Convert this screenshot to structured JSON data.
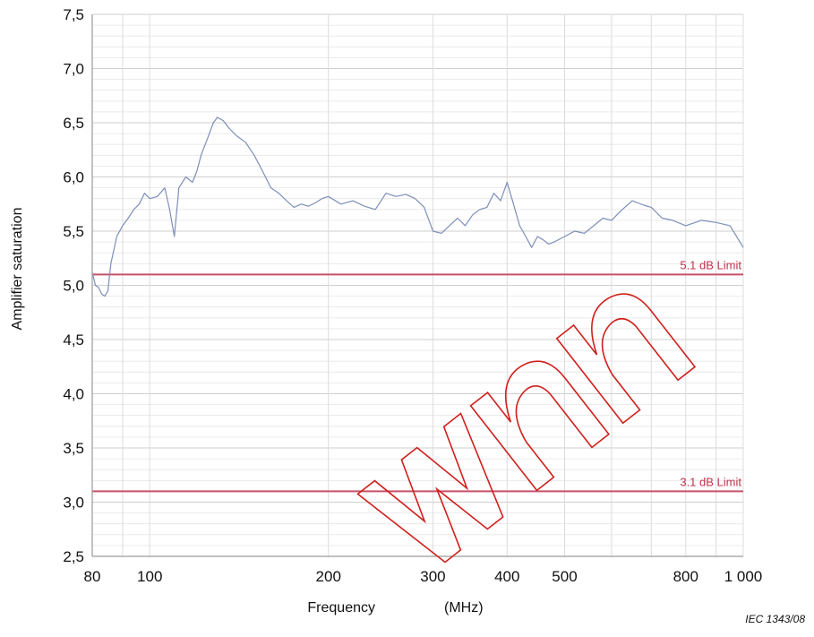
{
  "chart_data": {
    "type": "line",
    "xlabel": "Frequency",
    "xunit": "(MHz)",
    "ylabel": "Amplifier saturation",
    "x_scale": "log",
    "xlim": [
      80,
      1000
    ],
    "ylim": [
      2.5,
      7.5
    ],
    "x_ticks": [
      {
        "value": 80,
        "label": "80"
      },
      {
        "value": 100,
        "label": "100"
      },
      {
        "value": 200,
        "label": "200"
      },
      {
        "value": 300,
        "label": "300"
      },
      {
        "value": 400,
        "label": "400"
      },
      {
        "value": 500,
        "label": "500"
      },
      {
        "value": 800,
        "label": "800"
      },
      {
        "value": 1000,
        "label": "1 000"
      }
    ],
    "y_ticks": [
      {
        "value": 2.5,
        "label": "2,5"
      },
      {
        "value": 3.0,
        "label": "3,0"
      },
      {
        "value": 3.5,
        "label": "3,5"
      },
      {
        "value": 4.0,
        "label": "4,0"
      },
      {
        "value": 4.5,
        "label": "4,5"
      },
      {
        "value": 5.0,
        "label": "5,0"
      },
      {
        "value": 5.5,
        "label": "5,5"
      },
      {
        "value": 6.0,
        "label": "6,0"
      },
      {
        "value": 6.5,
        "label": "6,5"
      },
      {
        "value": 7.0,
        "label": "7,0"
      },
      {
        "value": 7.5,
        "label": "7,5"
      }
    ],
    "grid": true,
    "series": [
      {
        "color": "#7d8fb8",
        "x": [
          80,
          81,
          82,
          83,
          84,
          85,
          86,
          88,
          90,
          92,
          94,
          96,
          98,
          100,
          103,
          106,
          108,
          110,
          112,
          115,
          118,
          120,
          122,
          125,
          128,
          130,
          133,
          136,
          140,
          145,
          150,
          155,
          160,
          165,
          170,
          175,
          180,
          185,
          190,
          195,
          200,
          210,
          220,
          230,
          240,
          250,
          260,
          270,
          280,
          290,
          300,
          310,
          320,
          330,
          340,
          350,
          360,
          370,
          380,
          390,
          400,
          410,
          420,
          430,
          440,
          450,
          460,
          470,
          480,
          500,
          520,
          540,
          560,
          580,
          600,
          620,
          650,
          680,
          700,
          730,
          760,
          800,
          850,
          900,
          950,
          1000
        ],
        "values": [
          5.12,
          5.0,
          4.98,
          4.92,
          4.9,
          4.95,
          5.2,
          5.45,
          5.55,
          5.62,
          5.7,
          5.75,
          5.85,
          5.8,
          5.82,
          5.9,
          5.7,
          5.45,
          5.9,
          6.0,
          5.95,
          6.05,
          6.2,
          6.35,
          6.5,
          6.55,
          6.52,
          6.45,
          6.38,
          6.32,
          6.2,
          6.05,
          5.9,
          5.85,
          5.78,
          5.72,
          5.75,
          5.73,
          5.76,
          5.8,
          5.82,
          5.75,
          5.78,
          5.73,
          5.7,
          5.85,
          5.82,
          5.84,
          5.8,
          5.72,
          5.5,
          5.48,
          5.55,
          5.62,
          5.55,
          5.65,
          5.7,
          5.72,
          5.85,
          5.78,
          5.95,
          5.75,
          5.55,
          5.45,
          5.35,
          5.45,
          5.42,
          5.38,
          5.4,
          5.45,
          5.5,
          5.48,
          5.55,
          5.62,
          5.6,
          5.68,
          5.78,
          5.74,
          5.72,
          5.62,
          5.6,
          5.55,
          5.6,
          5.58,
          5.55,
          5.35
        ]
      }
    ],
    "limits": [
      {
        "value": 5.1,
        "label": "5.1 dB Limit",
        "color": "#c8506a"
      },
      {
        "value": 3.1,
        "label": "3.1 dB Limit",
        "color": "#c8506a"
      }
    ]
  },
  "figure_credit": "IEC  1343/08",
  "watermark": {
    "text": "Withdrawn",
    "color": "#d0201c"
  }
}
